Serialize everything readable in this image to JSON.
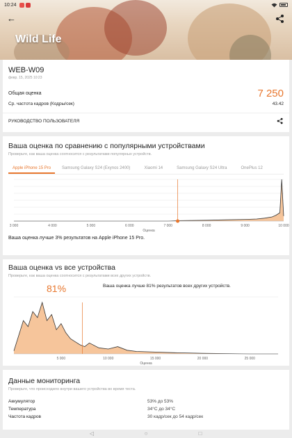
{
  "status_bar": {
    "time": "10:24"
  },
  "header": {
    "title": "Wild Life"
  },
  "result": {
    "name": "WEB-W09",
    "date": "февр. 15, 2025 10:23",
    "score_label": "Общая оценка",
    "score_value": "7 250",
    "fps_label": "Ср. частота кадров (Кодры/сек)",
    "fps_value": "43.42",
    "guide_label": "РУКОВОДСТВО ПОЛЬЗОВАТЕЛЯ"
  },
  "popular": {
    "title": "Ваша оценка по сравнению с популярными устройствами",
    "subtitle": "Проверьте, как ваша оценка соотносится с результатами популярных устройств.",
    "tabs": [
      "Apple iPhone 15 Pro",
      "Samsung Galaxy S24 (Exynos 2400)",
      "Xiaomi 14",
      "Samsung Galaxy S24 Ultra",
      "OnePlus 12"
    ],
    "active_tab": 0,
    "compare_text": "Ваша оценка лучше 3% результатов на Apple iPhone 15 Pro."
  },
  "all_devices": {
    "title": "Ваша оценка vs все устройства",
    "subtitle": "Проверьте, как ваша оценка соотносится с результатами всех других устройств.",
    "percent": "81%",
    "percent_text": "Ваша оценка лучше 81% результатов всех других устройств."
  },
  "monitoring": {
    "title": "Данные мониторинга",
    "subtitle": "Проверьте, что происходило внутри вашего устройства во время теста.",
    "rows": [
      {
        "label": "Аккумулятор",
        "value": "53% до 53%"
      },
      {
        "label": "Температура",
        "value": "34°C до 34°C"
      },
      {
        "label": "Частота кадров",
        "value": "30 кадр/сек до 54 кадр/сек"
      }
    ]
  },
  "colors": {
    "accent": "#e8772e",
    "fill": "#f3b27a"
  },
  "chart_data": [
    {
      "type": "area",
      "title": "Ваша оценка по сравнению с популярными устройствами",
      "xlabel": "Оценка",
      "x_ticks": [
        "3 000",
        "4 000",
        "5 000",
        "6 000",
        "7 000",
        "8 000",
        "9 000",
        "10 000"
      ],
      "xlim": [
        3000,
        10000
      ],
      "your_score": 7250,
      "series": [
        {
          "x": [
            3000,
            4000,
            5000,
            6000,
            7000,
            7250,
            8000,
            8500,
            9000,
            9300,
            9500,
            9700,
            9800,
            9900,
            9950,
            10000
          ],
          "y": [
            0,
            0,
            0,
            0,
            0,
            1,
            2,
            3,
            4,
            5,
            7,
            10,
            14,
            20,
            100,
            12
          ]
        }
      ]
    },
    {
      "type": "area",
      "title": "Ваша оценка vs все устройства",
      "xlabel": "Оценка",
      "x_ticks": [
        "5 000",
        "10 000",
        "15 000",
        "20 000",
        "25 000"
      ],
      "xlim": [
        0,
        28000
      ],
      "your_score": 7250,
      "series": [
        {
          "x": [
            0,
            500,
            1000,
            1500,
            2000,
            2500,
            3000,
            3500,
            4000,
            4500,
            5000,
            5500,
            6000,
            6500,
            7000,
            7500,
            8000,
            9000,
            10000,
            11000,
            12000,
            13000,
            15000,
            17000,
            20000,
            25000,
            28000
          ],
          "y": [
            5,
            30,
            55,
            45,
            70,
            60,
            85,
            55,
            65,
            40,
            50,
            35,
            25,
            20,
            15,
            12,
            18,
            10,
            8,
            12,
            6,
            4,
            3,
            2,
            1,
            0,
            0
          ]
        }
      ]
    }
  ]
}
